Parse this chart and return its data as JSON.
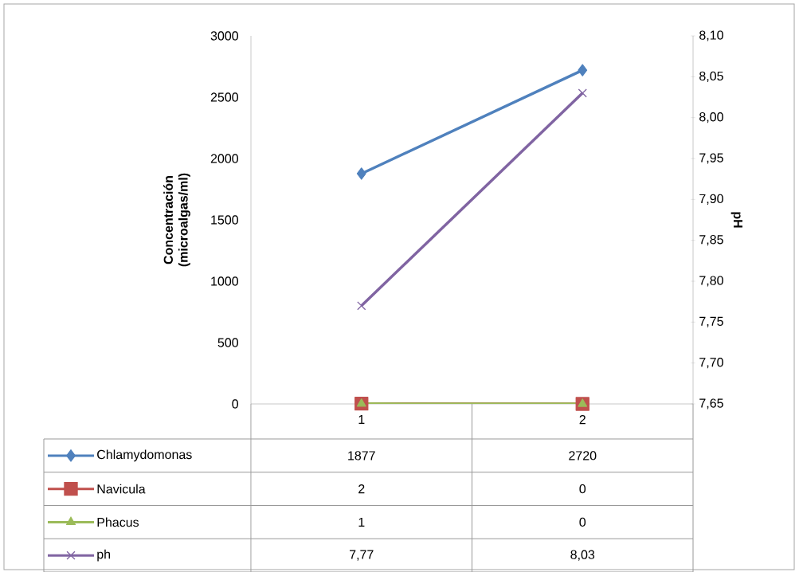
{
  "chart_data": {
    "type": "line",
    "categories": [
      "1",
      "2"
    ],
    "series": [
      {
        "name": "Chlamydomonas",
        "color": "#4f81bd",
        "marker": "diamond",
        "values": [
          1877,
          2720
        ],
        "value_labels": [
          "1877",
          "2720"
        ]
      },
      {
        "name": "Navicula",
        "color": "#c0504d",
        "marker": "square",
        "values": [
          2,
          0
        ],
        "value_labels": [
          "2",
          "0"
        ]
      },
      {
        "name": "Phacus",
        "color": "#9bbb59",
        "marker": "triangle",
        "values": [
          1,
          0
        ],
        "value_labels": [
          "1",
          "0"
        ]
      },
      {
        "name": "ph",
        "color": "#8064a2",
        "marker": "cross",
        "axis": "y2",
        "values": [
          7.77,
          8.03
        ],
        "value_labels": [
          "7,77",
          "8,03"
        ]
      }
    ],
    "ylabel": "Concentración (microalgas/ml)",
    "y2label": "pH",
    "ylim": [
      0,
      3000
    ],
    "yticks": [
      0,
      500,
      1000,
      1500,
      2000,
      2500,
      3000
    ],
    "y2lim": [
      7.65,
      8.1
    ],
    "y2ticks": [
      {
        "value": 7.65,
        "label": "7,65"
      },
      {
        "value": 7.7,
        "label": "7,70"
      },
      {
        "value": 7.75,
        "label": "7,75"
      },
      {
        "value": 7.8,
        "label": "7,80"
      },
      {
        "value": 7.85,
        "label": "7,85"
      },
      {
        "value": 7.9,
        "label": "7,90"
      },
      {
        "value": 7.95,
        "label": "7,95"
      },
      {
        "value": 8.0,
        "label": "8,00"
      },
      {
        "value": 8.05,
        "label": "8,05"
      },
      {
        "value": 8.1,
        "label": "8,10"
      }
    ],
    "legend": "bottom",
    "grid": false
  }
}
